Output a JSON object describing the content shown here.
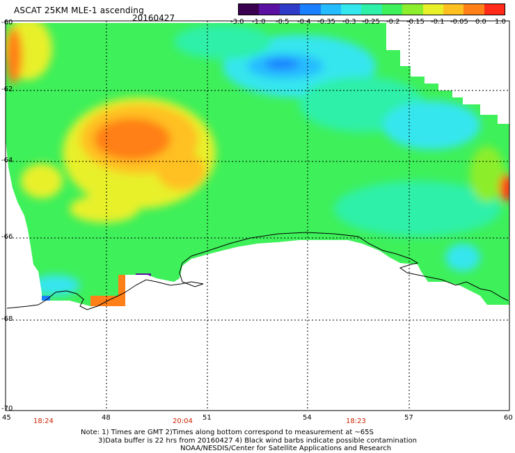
{
  "header": {
    "title": "ASCAT 25KM MLE-1 ascending",
    "date": "20160427"
  },
  "colorbar": {
    "ticks": [
      "-3.0",
      "-1.0",
      "-0.5",
      "-0.4",
      "-0.35",
      "-0.3",
      "-0.25",
      "-0.2",
      "-0.15",
      "-0.1",
      "-0.05",
      "0.0",
      "1.0"
    ],
    "colors": [
      "#3a0050",
      "#5a10a0",
      "#2e3cc8",
      "#1a80ff",
      "#25bbff",
      "#34e6ee",
      "#2ef0a8",
      "#3ef05a",
      "#8cee2c",
      "#e8f02a",
      "#ffc021",
      "#ff8018",
      "#ff2a18"
    ]
  },
  "map": {
    "y_labels": [
      "-60",
      "-62",
      "-64",
      "-66",
      "-68",
      "-70"
    ],
    "x_labels": [
      "45",
      "48",
      "51",
      "54",
      "57",
      "60"
    ],
    "times": [
      "18:24",
      "20:04",
      "18:23"
    ]
  },
  "notes": {
    "line1": "Note: 1) Times are GMT 2)Times along bottom correspond to measurement at ~65S",
    "line2": "3)Data buffer is 22 hrs from 20160427 4) Black wind barbs indicate possible contamination",
    "line3": "NOAA/NESDIS/Center for Satellite Applications and Research"
  }
}
